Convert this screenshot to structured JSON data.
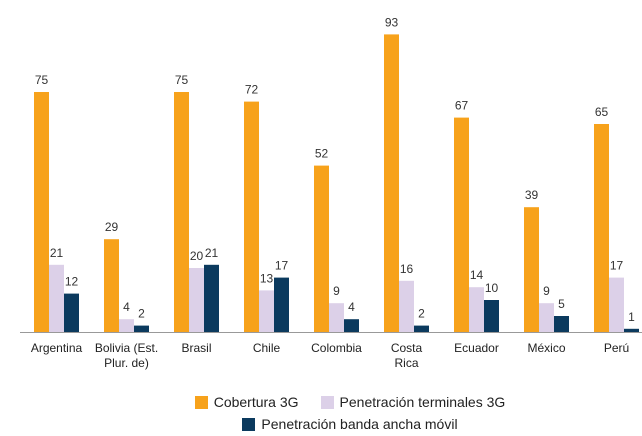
{
  "chart_data": {
    "type": "bar",
    "categories": [
      "Argentina",
      "Bolivia (Est.\nPlur. de)",
      "Brasil",
      "Chile",
      "Colombia",
      "Costa\nRica",
      "Ecuador",
      "México",
      "Perú"
    ],
    "series": [
      {
        "name": "Cobertura 3G",
        "color": "#f7a21b",
        "values": [
          75,
          29,
          75,
          72,
          52,
          93,
          67,
          39,
          65
        ]
      },
      {
        "name": "Penetración terminales 3G",
        "color": "#dcd0e8",
        "values": [
          21,
          4,
          20,
          13,
          9,
          16,
          14,
          9,
          17
        ]
      },
      {
        "name": "Penetración banda ancha móvil",
        "color": "#0b3a5e",
        "values": [
          12,
          2,
          21,
          17,
          4,
          2,
          10,
          5,
          1
        ]
      }
    ]
  }
}
